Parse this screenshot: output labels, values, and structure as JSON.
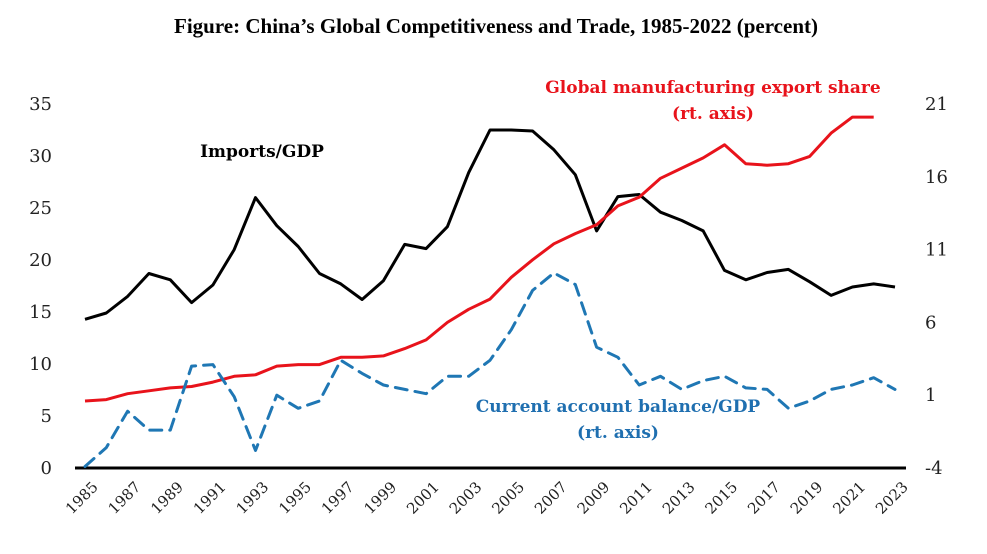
{
  "chart_data": {
    "type": "line",
    "title": "Figure: China’s Global Competitiveness and Trade, 1985-2022 (percent)",
    "xlabel": "",
    "ylabel": "",
    "x": [
      1985,
      1986,
      1987,
      1988,
      1989,
      1990,
      1991,
      1992,
      1993,
      1994,
      1995,
      1996,
      1997,
      1998,
      1999,
      2000,
      2001,
      2002,
      2003,
      2004,
      2005,
      2006,
      2007,
      2008,
      2009,
      2010,
      2011,
      2012,
      2013,
      2014,
      2015,
      2016,
      2017,
      2018,
      2019,
      2020,
      2021,
      2022,
      2023
    ],
    "x_tick_labels": [
      "1985",
      "1987",
      "1989",
      "1991",
      "1993",
      "1995",
      "1997",
      "1999",
      "2001",
      "2003",
      "2005",
      "2007",
      "2009",
      "2011",
      "2013",
      "2015",
      "2017",
      "2019",
      "2021",
      "2023"
    ],
    "left_axis": {
      "ylim": [
        0,
        35
      ],
      "ticks": [
        "0",
        "5",
        "10",
        "15",
        "20",
        "25",
        "30",
        "35"
      ]
    },
    "right_axis": {
      "ylim": [
        -4,
        21
      ],
      "ticks": [
        "-4",
        "1",
        "6",
        "11",
        "16",
        "21"
      ]
    },
    "grid": false,
    "series": [
      {
        "name": "Imports/GDP",
        "axis": "left",
        "color": "#000000",
        "style": "solid",
        "label_lines": [
          "Imports/GDP"
        ],
        "values": [
          14.3,
          14.9,
          16.5,
          18.7,
          18.1,
          15.9,
          17.6,
          21.0,
          26.0,
          23.3,
          21.3,
          18.7,
          17.7,
          16.2,
          18.0,
          21.5,
          21.1,
          23.2,
          28.4,
          32.5,
          32.5,
          32.4,
          30.6,
          28.2,
          22.8,
          26.1,
          26.3,
          24.6,
          23.8,
          22.8,
          19.0,
          18.1,
          18.8,
          19.1,
          17.9,
          16.6,
          17.4,
          17.7,
          17.4
        ]
      },
      {
        "name": "Global manufacturing export share (rt. axis)",
        "axis": "right",
        "color": "#e8131b",
        "style": "solid",
        "label_lines": [
          "Global manufacturing export share",
          "(rt. axis)"
        ],
        "values": [
          0.6,
          0.7,
          1.1,
          1.3,
          1.5,
          1.6,
          1.9,
          2.3,
          2.4,
          3.0,
          3.1,
          3.1,
          3.6,
          3.6,
          3.7,
          4.2,
          4.8,
          6.0,
          6.9,
          7.6,
          9.1,
          10.3,
          11.4,
          12.1,
          12.7,
          14.0,
          14.6,
          15.9,
          16.6,
          17.3,
          18.2,
          16.9,
          16.8,
          16.9,
          17.4,
          19.0,
          20.1,
          20.1,
          null
        ]
      },
      {
        "name": "Current account balance/GDP (rt. axis)",
        "axis": "right",
        "color": "#1f77b4",
        "style": "dashed",
        "label_lines": [
          "Current account balance/GDP",
          "(rt. axis)"
        ],
        "values": [
          -3.9,
          -2.6,
          -0.1,
          -1.4,
          -1.4,
          3.0,
          3.1,
          0.9,
          -2.8,
          1.0,
          0.1,
          0.6,
          3.4,
          2.5,
          1.7,
          1.4,
          1.1,
          2.3,
          2.3,
          3.4,
          5.5,
          8.2,
          9.4,
          8.6,
          4.3,
          3.6,
          1.7,
          2.3,
          1.4,
          2.0,
          2.3,
          1.5,
          1.4,
          0.1,
          0.6,
          1.4,
          1.7,
          2.2,
          1.4
        ]
      }
    ]
  }
}
